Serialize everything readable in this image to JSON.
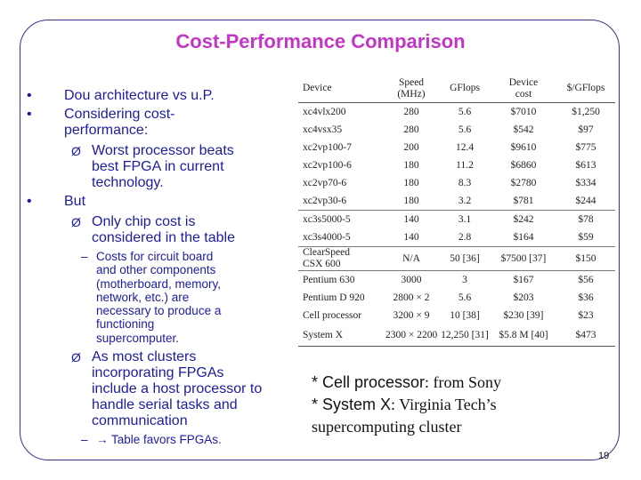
{
  "title": "Cost-Performance Comparison",
  "bullets": [
    {
      "marker": "•",
      "level": 1,
      "lines": [
        "Dou architecture vs u.P."
      ]
    },
    {
      "marker": "•",
      "level": 1,
      "lines": [
        "Considering cost-",
        "performance:"
      ]
    },
    {
      "marker": "Ø",
      "level": 2,
      "lines": [
        "Worst processor beats",
        "best FPGA in current",
        "technology."
      ]
    },
    {
      "marker": "•",
      "level": 1,
      "lines": [
        "But"
      ]
    },
    {
      "marker": "Ø",
      "level": 2,
      "lines": [
        "Only chip cost is",
        "considered in the table"
      ]
    },
    {
      "marker": "–",
      "level": 3,
      "lines": [
        "Costs for circuit board",
        "and other components",
        "(motherboard, memory,",
        "network, etc.) are",
        "necessary to produce a",
        "functioning",
        "supercomputer."
      ]
    },
    {
      "marker": "Ø",
      "level": 2,
      "lines": [
        "As most clusters",
        "incorporating FPGAs",
        "include a host processor to",
        "handle serial tasks and",
        "communication"
      ]
    },
    {
      "marker": "–",
      "level": 3,
      "lines": [
        "→ Table favors FPGAs."
      ]
    }
  ],
  "table": {
    "headers": [
      [
        "Device"
      ],
      [
        "Speed",
        "(MHz)"
      ],
      [
        "GFlops"
      ],
      [
        "Device",
        "cost"
      ],
      [
        "$/GFlops"
      ]
    ],
    "rows": [
      [
        [
          "xc4vlx200"
        ],
        "280",
        "5.6",
        "$7010",
        "$1,250"
      ],
      [
        [
          "xc4vsx35"
        ],
        "280",
        "5.6",
        "$542",
        "$97"
      ],
      [
        [
          "xc2vp100-7"
        ],
        "200",
        "12.4",
        "$9610",
        "$775"
      ],
      [
        [
          "xc2vp100-6"
        ],
        "180",
        "11.2",
        "$6860",
        "$613"
      ],
      [
        [
          "xc2vp70-6"
        ],
        "180",
        "8.3",
        "$2780",
        "$334"
      ],
      [
        [
          "xc2vp30-6"
        ],
        "180",
        "3.2",
        "$781",
        "$244"
      ],
      [
        [
          "xc3s5000-5"
        ],
        "140",
        "3.1",
        "$242",
        "$78"
      ],
      [
        [
          "xc3s4000-5"
        ],
        "140",
        "2.8",
        "$164",
        "$59"
      ],
      [
        [
          "ClearSpeed",
          "CSX 600"
        ],
        "N/A",
        "50 [36]",
        "$7500 [37]",
        "$150"
      ],
      [
        [
          "Pentium 630"
        ],
        "3000",
        "3",
        "$167",
        "$56"
      ],
      [
        [
          "Pentium D 920"
        ],
        "2800 × 2",
        "5.6",
        "$203",
        "$36"
      ],
      [
        [
          "Cell processor"
        ],
        "3200 × 9",
        "10 [38]",
        "$230 [39]",
        "$23"
      ],
      [
        [
          "System X"
        ],
        "2300 × 2200",
        "12,250 [31]",
        "$5.8 M [40]",
        "$473"
      ]
    ]
  },
  "notes": [
    [
      "* Cell processor",
      ": from Sony"
    ],
    [
      "* System X",
      ": Virginia Tech’s"
    ],
    [
      "supercomputing cluster"
    ]
  ],
  "page_number": "19"
}
